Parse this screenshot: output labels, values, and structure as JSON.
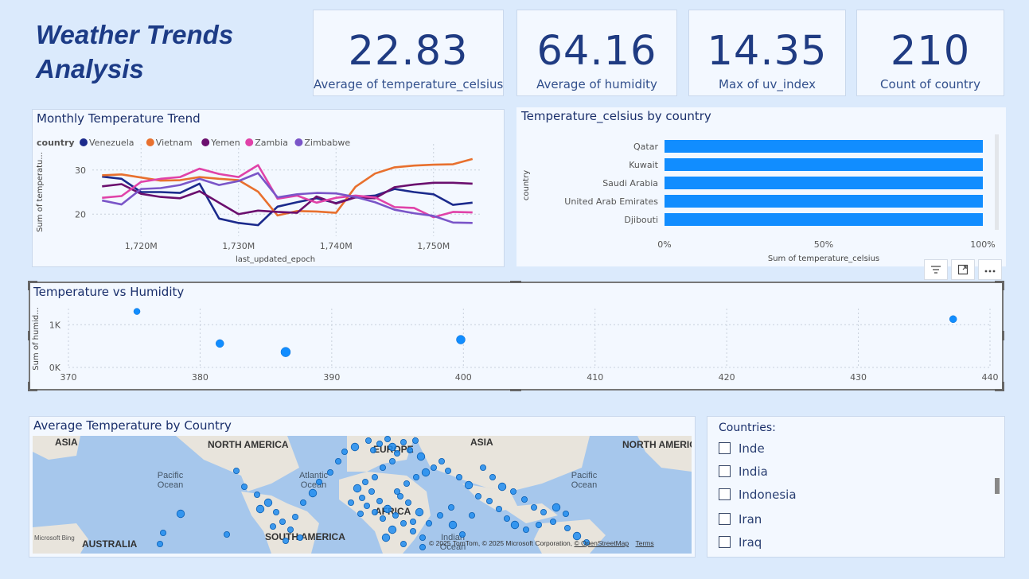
{
  "page_title_line1": "Weather Trends",
  "page_title_line2": "Analysis",
  "kpis": [
    {
      "value": "22.83",
      "label": "Average of temperature_celsius"
    },
    {
      "value": "64.16",
      "label": "Average of humidity"
    },
    {
      "value": "14.35",
      "label": "Max of uv_index"
    },
    {
      "value": "210",
      "label": "Count of country"
    }
  ],
  "line_chart": {
    "title": "Monthly Temperature Trend",
    "legend_title": "country"
  },
  "bar_chart": {
    "title": "Temperature_celsius by country"
  },
  "scatter_chart": {
    "title": "Temperature vs Humidity"
  },
  "map": {
    "title": "Average Temperature by Country",
    "labels": [
      "ASIA",
      "NORTH AMERICA",
      "EUROPE",
      "ASIA",
      "NORTH AMERIC",
      "Pacific Ocean",
      "Atlantic Ocean",
      "AFRICA",
      "Pacific Ocean",
      "AUSTRALIA",
      "SOUTH AMERICA",
      "Indian Ocean"
    ],
    "attribution": "© 2025 TomTom, © 2025 Microsoft Corporation,",
    "osm": "© OpenStreetMap",
    "terms": "Terms",
    "bing": "Microsoft Bing"
  },
  "slicer": {
    "title": "Countries:",
    "items": [
      "Inde",
      "India",
      "Indonesia",
      "Iran",
      "Iraq"
    ]
  },
  "toolbar_icons": [
    "filter-icon",
    "focus-mode-icon",
    "more-options-icon"
  ],
  "chart_data": [
    {
      "type": "line",
      "title": "Monthly Temperature Trend",
      "xlabel": "last_updated_epoch",
      "ylabel": "Sum of temperatu...",
      "xlim": [
        1715,
        1755
      ],
      "ylim": [
        15,
        35
      ],
      "x_ticks": [
        "1,720M",
        "1,730M",
        "1,740M",
        "1,750M"
      ],
      "y_ticks": [
        "20",
        "30"
      ],
      "legend_title": "country",
      "x": [
        1716,
        1718,
        1720,
        1722,
        1724,
        1726,
        1728,
        1730,
        1732,
        1734,
        1736,
        1738,
        1740,
        1742,
        1744,
        1746,
        1748,
        1750,
        1752,
        1754
      ],
      "series": [
        {
          "name": "Venezuela",
          "color": "#1b2a8c",
          "values": [
            28.5,
            28,
            25,
            25,
            24.8,
            26.9,
            19,
            18,
            17.5,
            21.7,
            22.7,
            23.6,
            22.5,
            23.9,
            24.2,
            25.7,
            25,
            24.5,
            22.1,
            22.6
          ]
        },
        {
          "name": "Vietnam",
          "color": "#e8702e",
          "values": [
            28.8,
            29,
            28.3,
            27.6,
            27.7,
            28.4,
            28,
            27.7,
            25.1,
            19.7,
            20.7,
            20.6,
            20.3,
            26.2,
            29.2,
            30.6,
            31,
            31.2,
            31.3,
            32.5
          ]
        },
        {
          "name": "Yemen",
          "color": "#6b0f6e",
          "values": [
            26.3,
            26.8,
            24.6,
            23.9,
            23.6,
            25.2,
            22.6,
            20,
            20.8,
            20.5,
            20.3,
            24,
            22.4,
            23.8,
            23.6,
            26.1,
            26.7,
            27.1,
            27.1,
            26.9
          ]
        },
        {
          "name": "Zambia",
          "color": "#e042a8",
          "values": [
            23.7,
            24.1,
            27.3,
            28,
            28.4,
            30.3,
            29.1,
            28.4,
            31.1,
            23.5,
            24.2,
            22.6,
            23.7,
            24.2,
            23.8,
            21.6,
            21.4,
            19.3,
            20.5,
            20.4
          ]
        },
        {
          "name": "Zimbabwe",
          "color": "#7a55c8",
          "values": [
            23.1,
            22.2,
            25.7,
            25.9,
            26.6,
            28,
            26.6,
            27.5,
            29.3,
            23.8,
            24.5,
            24.8,
            24.7,
            23.9,
            22.7,
            21,
            20.2,
            19.6,
            18.1,
            18
          ]
        }
      ]
    },
    {
      "type": "bar",
      "title": "Temperature_celsius by country",
      "xlabel": "Sum of temperature_celsius",
      "ylabel": "country",
      "categories": [
        "Qatar",
        "Kuwait",
        "Saudi Arabia",
        "United Arab Emirates",
        "Djibouti"
      ],
      "values": [
        100,
        100,
        100,
        100,
        100
      ],
      "x_ticks": [
        "0%",
        "50%",
        "100%"
      ],
      "xlim": [
        0,
        100
      ],
      "color": "#118dff"
    },
    {
      "type": "scatter",
      "title": "Temperature vs Humidity",
      "ylabel": "Sum of humid...",
      "xlim": [
        370,
        440
      ],
      "ylim": [
        0,
        1600
      ],
      "x_ticks": [
        "370",
        "380",
        "390",
        "400",
        "410",
        "420",
        "430",
        "440"
      ],
      "y_ticks": [
        "0K",
        "1K"
      ],
      "color": "#118dff",
      "points": [
        {
          "x": 375.2,
          "y": 1310
        },
        {
          "x": 381.5,
          "y": 560
        },
        {
          "x": 386.5,
          "y": 360
        },
        {
          "x": 399.8,
          "y": 650
        },
        {
          "x": 437.2,
          "y": 1130
        }
      ]
    }
  ]
}
